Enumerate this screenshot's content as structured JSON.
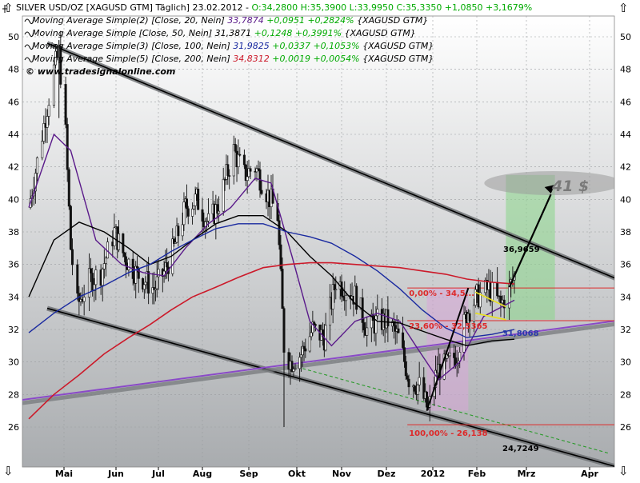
{
  "header": {
    "line1": {
      "prefix": "SILVER USD/OZ [XAGUSD GTM] Täglich] 23.02.2012 - ",
      "ohl": "O:34,2800 H:35,3900 L:33,9950 ",
      "close": "C:35,3350 +1,0850 +3,1679%"
    },
    "line2": {
      "label": "Moving Average Simple(2) [Close, 20, Nein] ",
      "value": "33,7874",
      "change": " +0,0951 +0,2824%",
      "suffix": " {XAGUSD GTM}",
      "color": "#5a1a8a"
    },
    "line3": {
      "label": "Moving Average Simple [Close, 50, Nein] ",
      "value": "31,3871",
      "change": " +0,1248 +0,3991%",
      "suffix": " {XAGUSD GTM}",
      "color": "#000000"
    },
    "line4": {
      "label": "Moving Average Simple(3) [Close, 100, Nein] ",
      "value": "31,9825",
      "change": " +0,0337 +0,1053%",
      "suffix": " {XAGUSD GTM}",
      "color": "#1a2aa0"
    },
    "line5": {
      "label": "Moving Average Simple(5) [Close, 200, Nein] ",
      "value": "34,8312",
      "change": " +0,0019 +0,0054%",
      "suffix": " {XAGUSD GTM}",
      "color": "#cc1a2a"
    },
    "watermark": "© www.tradesignalonline.com",
    "up_arrow": "⇧",
    "down_arrow": "⇩"
  },
  "annotations": {
    "target": "41 $",
    "level_369659": "36,9659",
    "fib_0": "0,00% - 34,5...",
    "fib_236": "23,60% - 32,5365",
    "fib_100": "100,00% - 26,138",
    "level_318068": "31,8068",
    "level_247249": "24,7249"
  },
  "colors": {
    "background_top": "#ffffff",
    "background_bottom": "#a9acaf",
    "ma20": "#5a1a8a",
    "ma50": "#000000",
    "ma100": "#1a2aa0",
    "ma200": "#cc1a2a",
    "positive": "#00aa00",
    "channel": "#555555",
    "trendline": "#8a4ac8"
  },
  "chart_data": {
    "type": "candlestick",
    "title": "SILVER USD/OZ [XAGUSD GTM] Täglich]",
    "ylim": [
      24.4,
      51.2
    ],
    "y_ticks": [
      "26",
      "28",
      "30",
      "32",
      "34",
      "36",
      "38",
      "40",
      "42",
      "44",
      "46",
      "48",
      "50"
    ],
    "x_ticks": [
      "Mai",
      "Jun",
      "Jul",
      "Aug",
      "Sep",
      "Okt",
      "Nov",
      "Dez",
      "2012",
      "Feb",
      "Mrz",
      "Apr"
    ],
    "price_path": [
      [
        "2011-04-10",
        39.5
      ],
      [
        "2011-04-18",
        44.0
      ],
      [
        "2011-04-25",
        48.0
      ],
      [
        "2011-04-28",
        49.0
      ],
      [
        "2011-05-02",
        44.0
      ],
      [
        "2011-05-05",
        37.0
      ],
      [
        "2011-05-09",
        33.5
      ],
      [
        "2011-05-16",
        35.0
      ],
      [
        "2011-05-23",
        35.5
      ],
      [
        "2011-05-31",
        38.0
      ],
      [
        "2011-06-07",
        36.5
      ],
      [
        "2011-06-15",
        35.5
      ],
      [
        "2011-06-22",
        35.0
      ],
      [
        "2011-06-28",
        34.5
      ],
      [
        "2011-07-05",
        35.5
      ],
      [
        "2011-07-12",
        37.0
      ],
      [
        "2011-07-20",
        39.5
      ],
      [
        "2011-07-28",
        40.0
      ],
      [
        "2011-08-05",
        38.5
      ],
      [
        "2011-08-11",
        39.5
      ],
      [
        "2011-08-22",
        43.0
      ],
      [
        "2011-08-29",
        41.5
      ],
      [
        "2011-09-05",
        42.0
      ],
      [
        "2011-09-12",
        40.5
      ],
      [
        "2011-09-19",
        39.0
      ],
      [
        "2011-09-23",
        31.0
      ],
      [
        "2011-09-27",
        30.0
      ],
      [
        "2011-10-04",
        30.5
      ],
      [
        "2011-10-12",
        32.0
      ],
      [
        "2011-10-20",
        31.5
      ],
      [
        "2011-10-28",
        35.0
      ],
      [
        "2011-11-04",
        34.5
      ],
      [
        "2011-11-11",
        34.0
      ],
      [
        "2011-11-18",
        32.0
      ],
      [
        "2011-11-25",
        32.5
      ],
      [
        "2011-12-02",
        32.5
      ],
      [
        "2011-12-09",
        31.5
      ],
      [
        "2011-12-16",
        29.0
      ],
      [
        "2011-12-23",
        28.5
      ],
      [
        "2011-12-29",
        27.0
      ],
      [
        "2012-01-04",
        29.5
      ],
      [
        "2012-01-11",
        29.8
      ],
      [
        "2012-01-18",
        30.5
      ],
      [
        "2012-01-25",
        33.0
      ],
      [
        "2012-02-01",
        34.0
      ],
      [
        "2012-02-08",
        34.5
      ],
      [
        "2012-02-15",
        33.5
      ],
      [
        "2012-02-20",
        34.5
      ],
      [
        "2012-02-23",
        35.3
      ]
    ],
    "series": [
      {
        "name": "Moving Average Simple(2) [Close, 20, Nein]",
        "color": "#5a1a8a",
        "width": 1.4,
        "points": [
          [
            "2011-04-10",
            39.5
          ],
          [
            "2011-04-25",
            44.0
          ],
          [
            "2011-05-05",
            43.0
          ],
          [
            "2011-05-20",
            37.5
          ],
          [
            "2011-06-05",
            36.0
          ],
          [
            "2011-06-20",
            35.5
          ],
          [
            "2011-07-05",
            35.3
          ],
          [
            "2011-07-20",
            37.0
          ],
          [
            "2011-08-05",
            38.5
          ],
          [
            "2011-08-20",
            39.5
          ],
          [
            "2011-09-05",
            41.3
          ],
          [
            "2011-09-15",
            41.0
          ],
          [
            "2011-09-28",
            36.5
          ],
          [
            "2011-10-10",
            32.5
          ],
          [
            "2011-10-25",
            31.0
          ],
          [
            "2011-11-10",
            32.5
          ],
          [
            "2011-11-25",
            33.0
          ],
          [
            "2011-12-10",
            32.5
          ],
          [
            "2011-12-22",
            30.8
          ],
          [
            "2012-01-05",
            28.9
          ],
          [
            "2012-01-20",
            30.0
          ],
          [
            "2012-02-05",
            32.8
          ],
          [
            "2012-02-23",
            33.8
          ]
        ]
      },
      {
        "name": "Moving Average Simple [Close, 50, Nein]",
        "color": "#000000",
        "width": 1.4,
        "points": [
          [
            "2011-04-10",
            34.0
          ],
          [
            "2011-04-25",
            37.5
          ],
          [
            "2011-05-10",
            38.6
          ],
          [
            "2011-05-25",
            38.0
          ],
          [
            "2011-06-10",
            37.0
          ],
          [
            "2011-06-25",
            36.0
          ],
          [
            "2011-07-10",
            36.5
          ],
          [
            "2011-07-25",
            37.5
          ],
          [
            "2011-08-10",
            38.5
          ],
          [
            "2011-08-25",
            39.0
          ],
          [
            "2011-09-10",
            39.0
          ],
          [
            "2011-09-25",
            38.0
          ],
          [
            "2011-10-10",
            36.5
          ],
          [
            "2011-10-25",
            35.3
          ],
          [
            "2011-11-10",
            33.6
          ],
          [
            "2011-11-25",
            32.5
          ],
          [
            "2011-12-10",
            32.4
          ],
          [
            "2011-12-25",
            31.9
          ],
          [
            "2012-01-10",
            31.4
          ],
          [
            "2012-01-25",
            31.0
          ],
          [
            "2012-02-10",
            31.3
          ],
          [
            "2012-02-23",
            31.4
          ]
        ]
      },
      {
        "name": "Moving Average Simple(3) [Close, 100, Nein]",
        "color": "#1a2aa0",
        "width": 1.4,
        "points": [
          [
            "2011-04-10",
            31.8
          ],
          [
            "2011-04-25",
            33.0
          ],
          [
            "2011-05-10",
            34.0
          ],
          [
            "2011-05-25",
            34.7
          ],
          [
            "2011-06-10",
            35.5
          ],
          [
            "2011-06-25",
            36.0
          ],
          [
            "2011-07-10",
            36.8
          ],
          [
            "2011-07-25",
            37.5
          ],
          [
            "2011-08-10",
            38.2
          ],
          [
            "2011-08-25",
            38.5
          ],
          [
            "2011-09-10",
            38.5
          ],
          [
            "2011-09-25",
            38.0
          ],
          [
            "2011-10-10",
            37.7
          ],
          [
            "2011-10-25",
            37.3
          ],
          [
            "2011-11-10",
            36.5
          ],
          [
            "2011-11-25",
            35.6
          ],
          [
            "2011-12-10",
            34.5
          ],
          [
            "2011-12-25",
            33.2
          ],
          [
            "2012-01-10",
            32.1
          ],
          [
            "2012-01-25",
            31.5
          ],
          [
            "2012-02-10",
            31.7
          ],
          [
            "2012-02-23",
            32.0
          ]
        ]
      },
      {
        "name": "Moving Average Simple(5) [Close, 200, Nein]",
        "color": "#cc1a2a",
        "width": 1.6,
        "points": [
          [
            "2011-04-10",
            26.5
          ],
          [
            "2011-04-25",
            28.0
          ],
          [
            "2011-05-10",
            29.2
          ],
          [
            "2011-05-25",
            30.5
          ],
          [
            "2011-06-10",
            31.5
          ],
          [
            "2011-06-25",
            32.3
          ],
          [
            "2011-07-10",
            33.2
          ],
          [
            "2011-07-25",
            34.0
          ],
          [
            "2011-08-10",
            34.6
          ],
          [
            "2011-08-25",
            35.2
          ],
          [
            "2011-09-10",
            35.8
          ],
          [
            "2011-09-25",
            36.0
          ],
          [
            "2011-10-10",
            36.1
          ],
          [
            "2011-10-25",
            36.1
          ],
          [
            "2011-11-10",
            36.0
          ],
          [
            "2011-11-25",
            35.9
          ],
          [
            "2011-12-10",
            35.8
          ],
          [
            "2011-12-25",
            35.6
          ],
          [
            "2012-01-10",
            35.4
          ],
          [
            "2012-01-25",
            35.1
          ],
          [
            "2012-02-10",
            34.9
          ],
          [
            "2012-02-23",
            34.8
          ]
        ]
      }
    ],
    "channel_upper": [
      [
        "2011-04-21",
        49.6
      ],
      [
        "2012-04-30",
        34.3
      ]
    ],
    "channel_lower": [
      [
        "2011-04-21",
        33.3
      ],
      [
        "2012-04-30",
        23.0
      ]
    ],
    "rising_trendline": [
      [
        "2011-04-01",
        27.6
      ],
      [
        "2012-04-30",
        32.8
      ]
    ],
    "green_dashed": [
      [
        "2011-10-05",
        29.6
      ],
      [
        "2012-04-10",
        24.4
      ]
    ],
    "fib_levels": [
      {
        "label": "0,00% - 34,5...",
        "y": 34.55
      },
      {
        "label": "23,60% - 32,5365",
        "y": 32.54
      },
      {
        "label": "100,00% - 26,138",
        "y": 26.14
      }
    ],
    "ylabel": "",
    "xlabel": "",
    "legend": "top-left"
  }
}
